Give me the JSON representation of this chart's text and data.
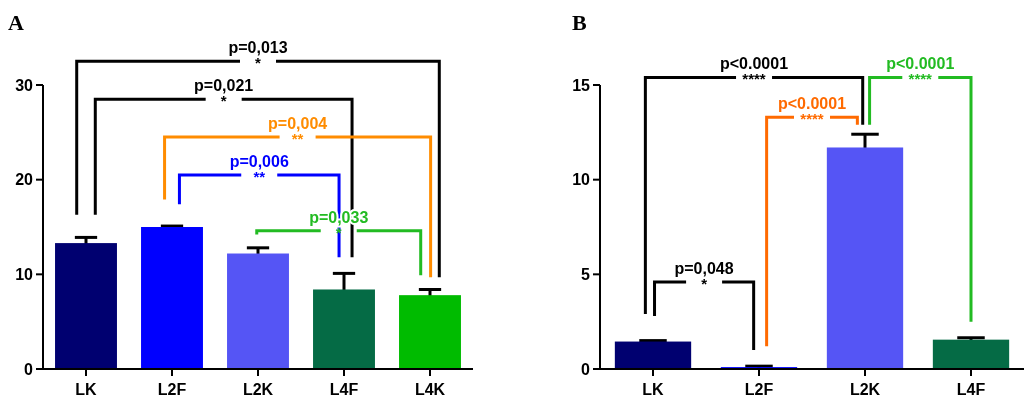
{
  "chart_data": [
    {
      "type": "bar",
      "title": "A",
      "categories": [
        "LK",
        "L2F",
        "L2K",
        "L4F",
        "L4K"
      ],
      "values": [
        13.3,
        15.0,
        12.2,
        8.4,
        7.8
      ],
      "colors": [
        "#000070",
        "#0000ff",
        "#5555f5",
        "#056b45",
        "#00bb00"
      ],
      "errors": [
        0.6,
        0.1,
        0.6,
        1.7,
        0.6
      ],
      "ylim": [
        0,
        30
      ],
      "yticks": [
        0,
        10,
        20,
        30
      ],
      "annotations": [
        "p=0,013",
        "*",
        "p=0,021",
        "*",
        "p=0,004",
        "**",
        "p=0,006",
        "**",
        "p=0,033",
        "*"
      ]
    },
    {
      "type": "bar",
      "title": "B",
      "categories": [
        "LK",
        "L2F",
        "L2K",
        "L4F"
      ],
      "values": [
        1.45,
        0.1,
        11.7,
        1.55
      ],
      "colors": [
        "#000070",
        "#0000ff",
        "#5555f5",
        "#056b45"
      ],
      "errors": [
        0.05,
        0.05,
        0.7,
        0.1
      ],
      "ylim": [
        0,
        15
      ],
      "yticks": [
        0,
        5,
        10,
        15
      ],
      "annotations": [
        "p<0.0001",
        "****",
        "p<0.0001",
        "****",
        "p<0.0001",
        "****",
        "p=0,048",
        "*"
      ]
    }
  ]
}
